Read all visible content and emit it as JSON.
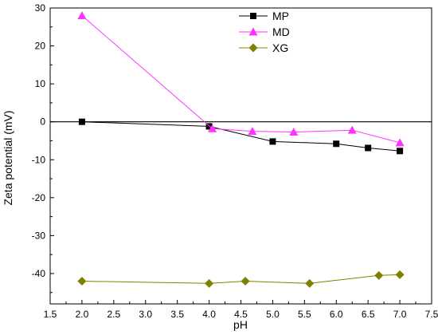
{
  "chart_data": {
    "type": "line",
    "xlabel": "pH",
    "ylabel": "Zeta potential (mV)",
    "xlim": [
      1.5,
      7.5
    ],
    "ylim": [
      -48,
      30
    ],
    "xticks": [
      "1.5",
      "2.0",
      "2.5",
      "3.0",
      "3.5",
      "4.0",
      "4.5",
      "5.0",
      "5.5",
      "6.0",
      "6.5",
      "7.0",
      "7.5"
    ],
    "yticks": [
      "30",
      "20",
      "10",
      "0",
      "-10",
      "-20",
      "-30",
      "-40"
    ],
    "grid": false,
    "zero_line": true,
    "legend_position": "top-right",
    "series": [
      {
        "name": "MP",
        "color": "#000000",
        "marker": "square",
        "x": [
          2.0,
          4.0,
          5.0,
          6.0,
          6.5,
          7.0
        ],
        "y": [
          0.0,
          -1.2,
          -5.2,
          -5.8,
          -6.9,
          -7.7
        ]
      },
      {
        "name": "MD",
        "color": "#ff33ff",
        "marker": "triangle",
        "x": [
          2.0,
          4.05,
          4.68,
          5.33,
          6.25,
          7.0
        ],
        "y": [
          28.0,
          -1.8,
          -2.5,
          -2.7,
          -2.2,
          -5.5
        ]
      },
      {
        "name": "XG",
        "color": "#808000",
        "marker": "diamond",
        "x": [
          2.0,
          4.0,
          4.57,
          5.58,
          6.67,
          7.0
        ],
        "y": [
          -42.0,
          -42.6,
          -42.0,
          -42.6,
          -40.5,
          -40.3
        ]
      }
    ]
  }
}
